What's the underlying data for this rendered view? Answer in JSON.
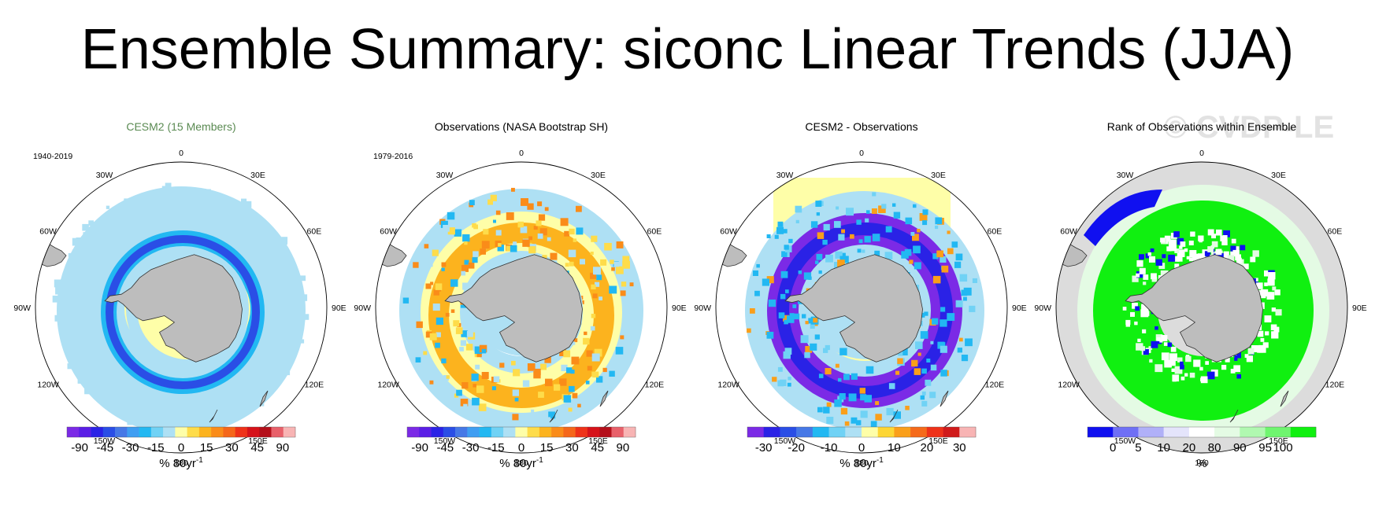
{
  "title": "Ensemble Summary: siconc Linear Trends (JJA)",
  "watermark": "© CVDP-LE",
  "colors": {
    "land": "#bdbdbd",
    "ocean": "#ffffff",
    "ring": "#000000",
    "rank_ocean": "#dcdcdc"
  },
  "lon_labels": [
    "0",
    "30E",
    "60E",
    "90E",
    "120E",
    "150E",
    "180",
    "150W",
    "120W",
    "90W",
    "60W",
    "30W"
  ],
  "chart_data": [
    {
      "type": "heatmap",
      "projection": "south-polar-stereographic",
      "title": "CESM2 (15 Members)",
      "title_color": "#5a8a52",
      "period": "1940-2019",
      "units": "% 80yr",
      "units_sup": "-1",
      "colorbar": {
        "colors": [
          "#7b2ae6",
          "#5a1ee6",
          "#2a22e6",
          "#2a4ee6",
          "#4678e6",
          "#3f9ef2",
          "#22b8f2",
          "#70d2f5",
          "#aee0f4",
          "#fefea8",
          "#fedc4a",
          "#fcb31e",
          "#fa8c19",
          "#f5671a",
          "#ee3219",
          "#d6121a",
          "#b40f1a",
          "#e8606a",
          "#f8b4b4"
        ],
        "tick_labels": [
          "-90",
          "-45",
          "-30",
          "-15",
          "0",
          "15",
          "30",
          "45",
          "90"
        ]
      },
      "pattern": "decline-ring"
    },
    {
      "type": "heatmap",
      "projection": "south-polar-stereographic",
      "title": "Observations (NASA Bootstrap SH)",
      "title_color": "#000000",
      "period": "1979-2016",
      "units": "% 80yr",
      "units_sup": "-1",
      "colorbar": {
        "colors": [
          "#7b2ae6",
          "#5a1ee6",
          "#2a22e6",
          "#2a4ee6",
          "#4678e6",
          "#3f9ef2",
          "#22b8f2",
          "#70d2f5",
          "#aee0f4",
          "#fefea8",
          "#fedc4a",
          "#fcb31e",
          "#fa8c19",
          "#f5671a",
          "#ee3219",
          "#d6121a",
          "#b40f1a",
          "#e8606a",
          "#f8b4b4"
        ],
        "tick_labels": [
          "-90",
          "-45",
          "-30",
          "-15",
          "0",
          "15",
          "30",
          "45",
          "90"
        ]
      },
      "pattern": "increase-ring"
    },
    {
      "type": "heatmap",
      "projection": "south-polar-stereographic",
      "title": "CESM2 - Observations",
      "title_color": "#000000",
      "period": "",
      "units": "% 80yr",
      "units_sup": "-1",
      "colorbar": {
        "colors": [
          "#7b2ae6",
          "#2a22e6",
          "#2a4ee6",
          "#4678e6",
          "#22b8f2",
          "#70d2f5",
          "#aee0f4",
          "#fefea8",
          "#fdd634",
          "#fa9f1a",
          "#f56a1a",
          "#ee3219",
          "#d01a1a",
          "#f8b4b4"
        ],
        "tick_labels": [
          "-30",
          "-20",
          "-10",
          "0",
          "10",
          "20",
          "30"
        ]
      },
      "pattern": "difference"
    },
    {
      "type": "heatmap",
      "projection": "south-polar-stereographic",
      "title": "Rank of Observations within Ensemble",
      "title_color": "#000000",
      "period": "",
      "units": "%",
      "units_sup": "",
      "colorbar": {
        "colors": [
          "#1010f0",
          "#6f6ff5",
          "#b0b0f8",
          "#e4e4fb",
          "#ffffff",
          "#e4fbe4",
          "#b0f8b0",
          "#6ff56f",
          "#10f010"
        ],
        "tick_labels": [
          "0",
          "5",
          "10",
          "20",
          "80",
          "90",
          "95",
          "100"
        ]
      },
      "pattern": "rank"
    }
  ]
}
